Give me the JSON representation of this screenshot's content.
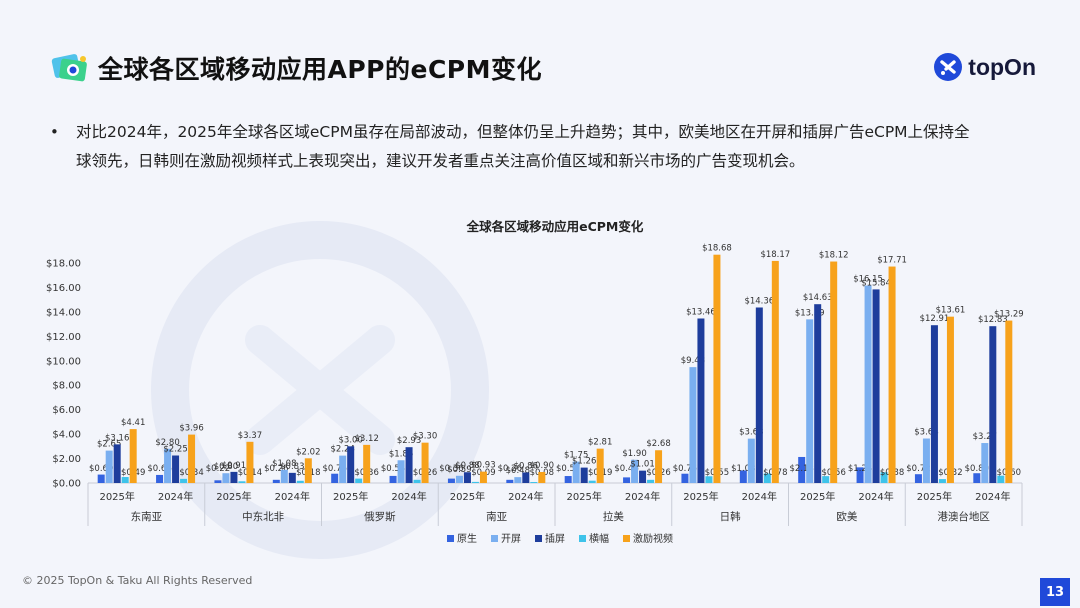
{
  "header": {
    "title": "全球各区域移动应用APP的eCPM变化",
    "brand_name": "topOn"
  },
  "summary": {
    "bullet": "•",
    "text": "对比2024年，2025年全球各区域eCPM虽存在局部波动，但整体仍呈上升趋势；其中，欧美地区在开屏和插屏广告eCPM上保持全球领先，日韩则在激励视频样式上表现突出，建议开发者重点关注高价值区域和新兴市场的广告变现机会。"
  },
  "footer": {
    "copyright": "© 2025 TopOn & Taku All Rights Reserved",
    "page_number": "13"
  },
  "colors": {
    "原生": "#3463e0",
    "开屏": "#7aaff0",
    "插屏": "#1e3d9c",
    "横幅": "#3ec3ea",
    "激励视频": "#f7a21b"
  },
  "chart_data": {
    "type": "bar",
    "title": "全球各区域移动应用eCPM变化",
    "ylim": [
      0,
      18
    ],
    "yticks": [
      "$0.00",
      "$2.00",
      "$4.00",
      "$6.00",
      "$8.00",
      "$10.00",
      "$12.00",
      "$14.00",
      "$16.00",
      "$18.00"
    ],
    "grid": false,
    "legend_position": "bottom",
    "series_names": [
      "原生",
      "开屏",
      "插屏",
      "横幅",
      "激励视频"
    ],
    "regions": [
      {
        "name": "东南亚",
        "groups": [
          {
            "year": "2025年",
            "values": [
              0.69,
              2.65,
              3.16,
              0.49,
              4.41
            ]
          },
          {
            "year": "2024年",
            "values": [
              0.66,
              2.8,
              2.25,
              0.34,
              3.96
            ]
          }
        ]
      },
      {
        "name": "中东北非",
        "groups": [
          {
            "year": "2025年",
            "values": [
              0.22,
              0.8,
              0.91,
              0.14,
              3.37
            ]
          },
          {
            "year": "2024年",
            "values": [
              0.26,
              1.08,
              0.83,
              0.18,
              2.02
            ]
          }
        ]
      },
      {
        "name": "俄罗斯",
        "groups": [
          {
            "year": "2025年",
            "values": [
              0.76,
              2.24,
              3.0,
              0.36,
              3.12
            ]
          },
          {
            "year": "2024年",
            "values": [
              0.58,
              1.86,
              2.93,
              0.26,
              3.3
            ]
          }
        ]
      },
      {
        "name": "南亚",
        "groups": [
          {
            "year": "2025年",
            "values": [
              0.36,
              0.59,
              0.88,
              0.09,
              0.93
            ]
          },
          {
            "year": "2024年",
            "values": [
              0.26,
              0.48,
              0.86,
              0.08,
              0.9
            ]
          }
        ]
      },
      {
        "name": "拉美",
        "groups": [
          {
            "year": "2025年",
            "values": [
              0.57,
              1.75,
              1.26,
              0.19,
              2.81
            ]
          },
          {
            "year": "2024年",
            "values": [
              0.46,
              1.9,
              1.01,
              0.26,
              2.68
            ]
          }
        ]
      },
      {
        "name": "日韩",
        "groups": [
          {
            "year": "2025年",
            "values": [
              0.76,
              9.48,
              13.46,
              0.55,
              18.68
            ]
          },
          {
            "year": "2024年",
            "values": [
              1.03,
              3.63,
              14.36,
              0.78,
              18.17
            ]
          }
        ]
      },
      {
        "name": "欧美",
        "groups": [
          {
            "year": "2025年",
            "values": [
              2.13,
              13.39,
              14.63,
              0.56,
              18.12
            ]
          },
          {
            "year": "2024年",
            "values": [
              1.28,
              16.15,
              15.84,
              0.88,
              17.71
            ]
          }
        ]
      },
      {
        "name": "港澳台地区",
        "groups": [
          {
            "year": "2025年",
            "values": [
              0.72,
              3.64,
              12.91,
              0.32,
              13.61
            ]
          },
          {
            "year": "2024年",
            "values": [
              0.8,
              3.27,
              12.83,
              0.6,
              13.29
            ]
          }
        ]
      }
    ]
  }
}
